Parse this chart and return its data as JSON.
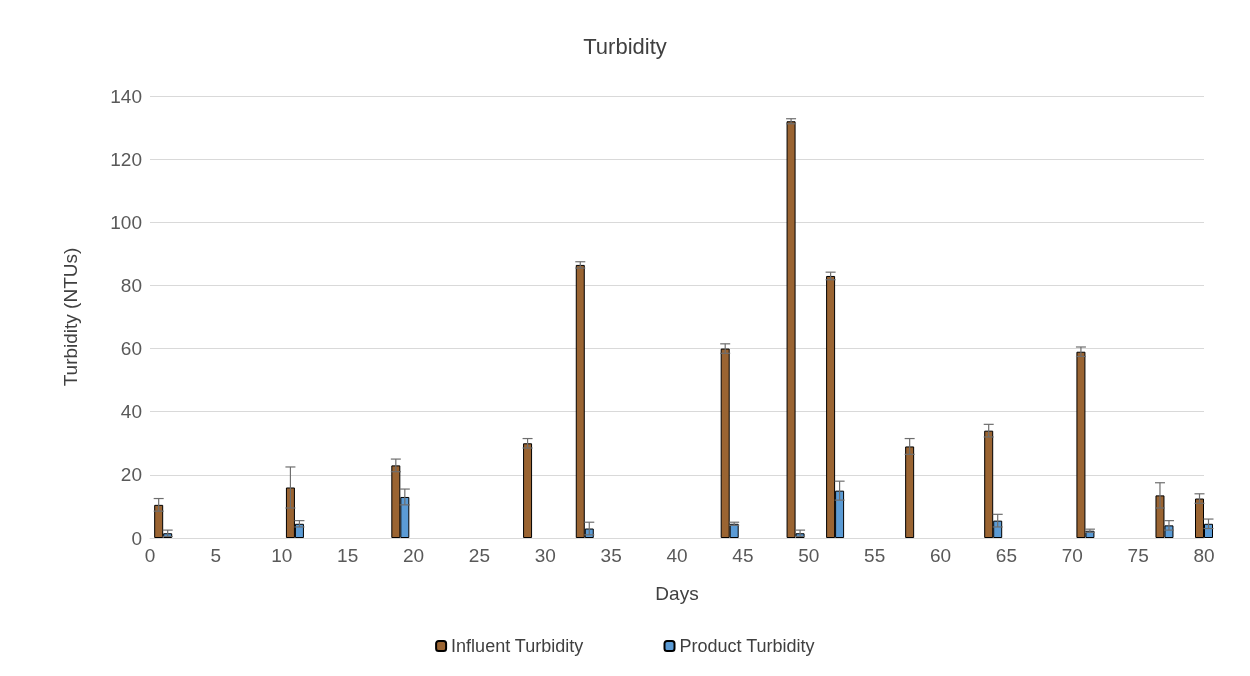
{
  "chart_data": {
    "type": "bar",
    "title": "Turbidity",
    "xlabel": "Days",
    "ylabel": "Turbidity (NTUs)",
    "x": [
      1,
      11,
      19,
      29,
      33,
      44,
      49,
      52,
      58,
      64,
      71,
      77,
      80
    ],
    "series": [
      {
        "name": "Influent Turbidity",
        "color": "#9a6432",
        "values": [
          10.5,
          16,
          23,
          30,
          86.5,
          60,
          132,
          83,
          29,
          34,
          59,
          13.5,
          12.5
        ],
        "errors": [
          2,
          6.5,
          2,
          1.5,
          1,
          1.5,
          0.8,
          1.2,
          2.5,
          2,
          1.5,
          4,
          1.5
        ]
      },
      {
        "name": "Product Turbidity",
        "color": "#5b9bd5",
        "values": [
          1.5,
          4.5,
          13,
          null,
          3,
          4.5,
          1.5,
          15,
          null,
          5.5,
          2.3,
          4,
          4.5
        ],
        "errors": [
          1,
          1,
          2.5,
          null,
          2,
          0.5,
          1,
          3,
          null,
          2,
          0.5,
          1.5,
          1.5
        ]
      }
    ],
    "xlim": [
      0,
      80
    ],
    "xticks": [
      0,
      5,
      10,
      15,
      20,
      25,
      30,
      35,
      40,
      45,
      50,
      55,
      60,
      65,
      70,
      75,
      80
    ],
    "ylim": [
      0,
      140
    ],
    "yticks": [
      0,
      20,
      40,
      60,
      80,
      100,
      120,
      140
    ],
    "grid": "y",
    "legend": "bottom"
  }
}
